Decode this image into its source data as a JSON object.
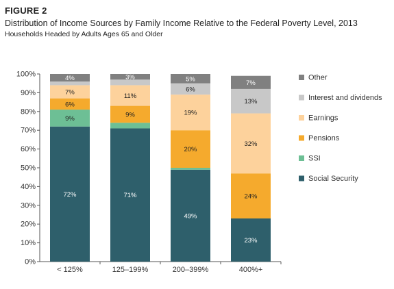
{
  "figure_label": "FIGURE 2",
  "title": "Distribution of Income Sources by Family Income Relative to the Federal Poverty Level, 2013",
  "subtitle": "Households Headed by Adults Ages 65 and Older",
  "chart_data": {
    "type": "bar",
    "stacked": true,
    "categories": [
      "< 125%",
      "125–199%",
      "200–399%",
      "400%+"
    ],
    "y_ticks": [
      "0%",
      "10%",
      "20%",
      "30%",
      "40%",
      "50%",
      "60%",
      "70%",
      "80%",
      "90%",
      "100%"
    ],
    "ylim": [
      0,
      100
    ],
    "legend_position": "right",
    "series": [
      {
        "name": "Social Security",
        "color": "#2e5f6b",
        "values": [
          72,
          71,
          49,
          23
        ],
        "labels": [
          "72%",
          "71%",
          "49%",
          "23%"
        ]
      },
      {
        "name": "SSI",
        "color": "#6dbf95",
        "values": [
          9,
          3,
          1,
          0
        ],
        "labels": [
          "9%",
          "",
          "",
          ""
        ]
      },
      {
        "name": "Pensions",
        "color": "#f5aa2d",
        "values": [
          6,
          9,
          20,
          24
        ],
        "labels": [
          "6%",
          "9%",
          "20%",
          "24%"
        ]
      },
      {
        "name": "Earnings",
        "color": "#fdd29c",
        "values": [
          7,
          11,
          19,
          32
        ],
        "labels": [
          "7%",
          "11%",
          "19%",
          "32%"
        ]
      },
      {
        "name": "Interest and dividends",
        "color": "#c8c8c8",
        "values": [
          2,
          3,
          6,
          13
        ],
        "labels": [
          "",
          "",
          "6%",
          "13%"
        ]
      },
      {
        "name": "Other",
        "color": "#808080",
        "values": [
          4,
          3,
          5,
          7
        ],
        "labels": [
          "4%",
          "3%",
          "5%",
          "7%"
        ]
      }
    ]
  }
}
